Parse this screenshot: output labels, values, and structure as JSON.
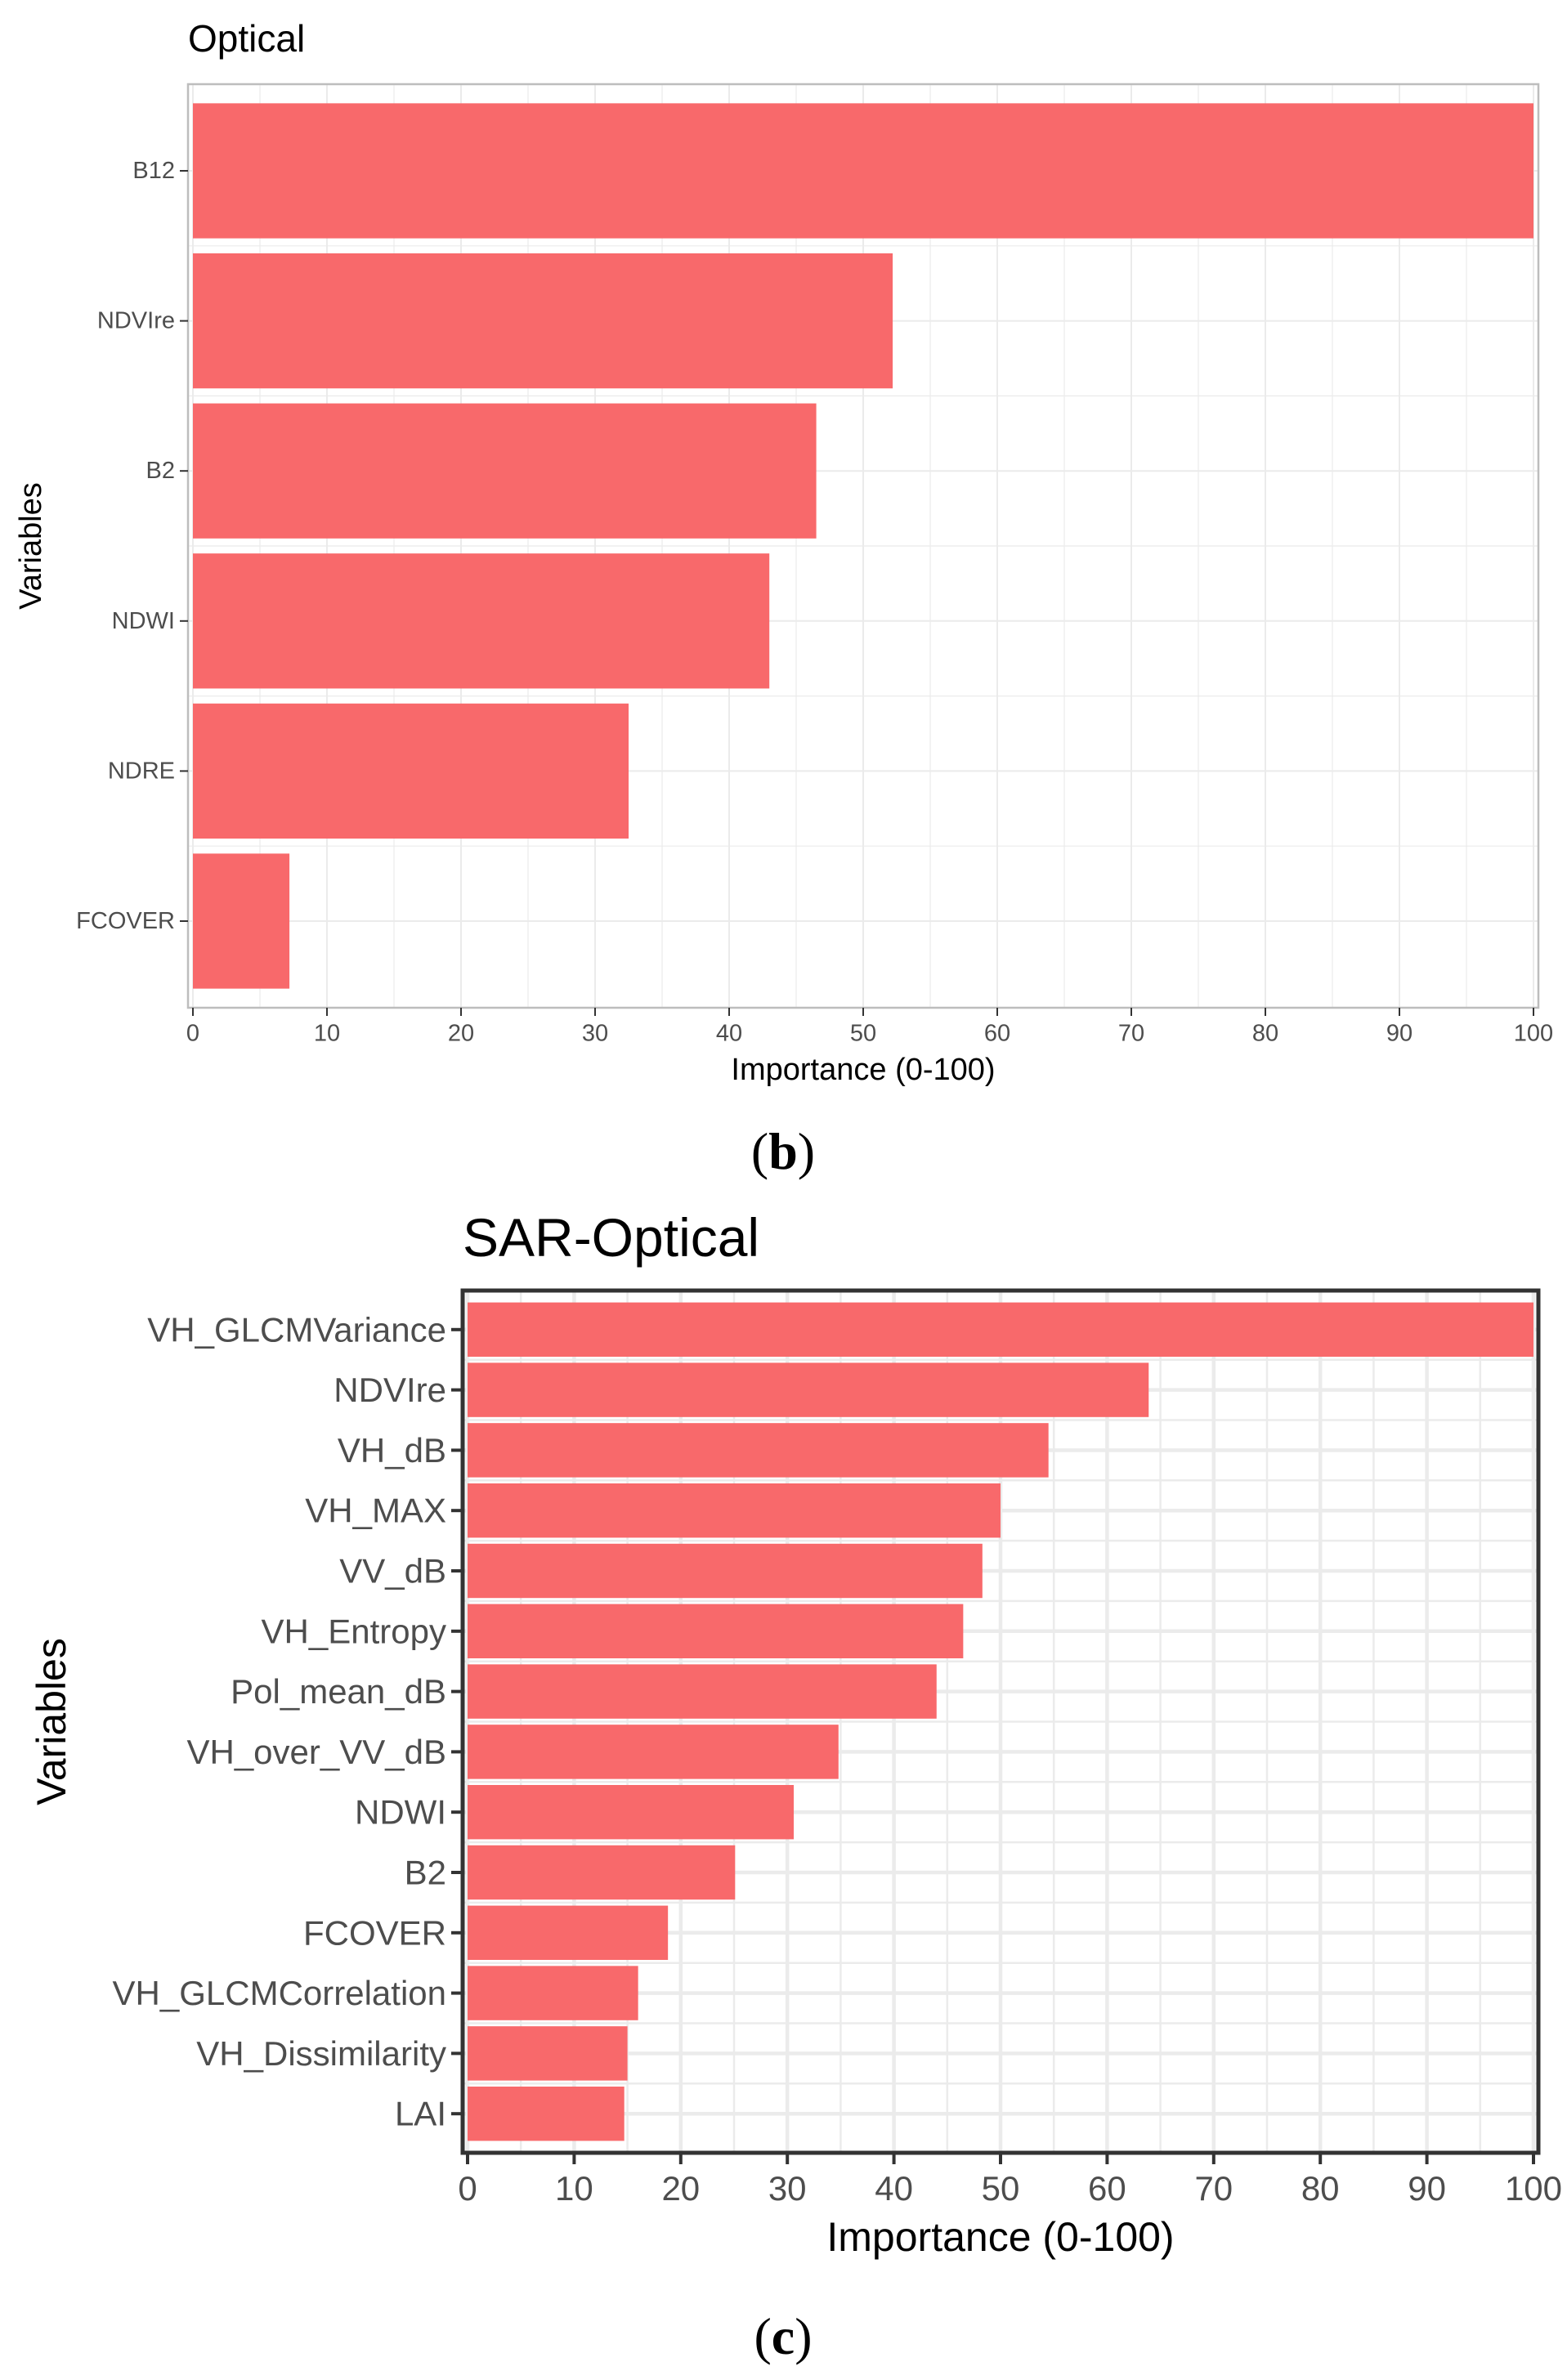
{
  "colors": {
    "bar": "#F8696B",
    "grid": "#EBEBEB",
    "axis": "#333333",
    "tick_text": "#4D4D4D"
  },
  "chart_data": [
    {
      "type": "bar",
      "orientation": "horizontal",
      "title": "Optical",
      "xlabel": "Importance (0-100)",
      "ylabel": "Variables",
      "panel_label": "(b)",
      "xlim": [
        0,
        100
      ],
      "xticks": [
        0,
        10,
        20,
        30,
        40,
        50,
        60,
        70,
        80,
        90,
        100
      ],
      "grid": true,
      "categories": [
        "B12",
        "NDVIre",
        "B2",
        "NDWI",
        "NDRE",
        "FCOVER"
      ],
      "values": [
        100,
        52.2,
        46.5,
        43.0,
        32.5,
        7.2
      ]
    },
    {
      "type": "bar",
      "orientation": "horizontal",
      "title": "SAR-Optical",
      "xlabel": "Importance (0-100)",
      "ylabel": "Variables",
      "panel_label": "(c)",
      "xlim": [
        0,
        100
      ],
      "xticks": [
        0,
        10,
        20,
        30,
        40,
        50,
        60,
        70,
        80,
        90,
        100
      ],
      "grid": true,
      "categories": [
        "VH_GLCMVariance",
        "NDVIre",
        "VH_dB",
        "VH_MAX",
        "VV_dB",
        "VH_Entropy",
        "Pol_mean_dB",
        "VH_over_VV_dB",
        "NDWI",
        "B2",
        "FCOVER",
        "VH_GLCMCorrelation",
        "VH_Dissimilarity",
        "LAI"
      ],
      "values": [
        100,
        63.9,
        54.5,
        50.0,
        48.3,
        46.5,
        44.0,
        34.8,
        30.6,
        25.1,
        18.8,
        16.0,
        15.0,
        14.7
      ]
    }
  ]
}
